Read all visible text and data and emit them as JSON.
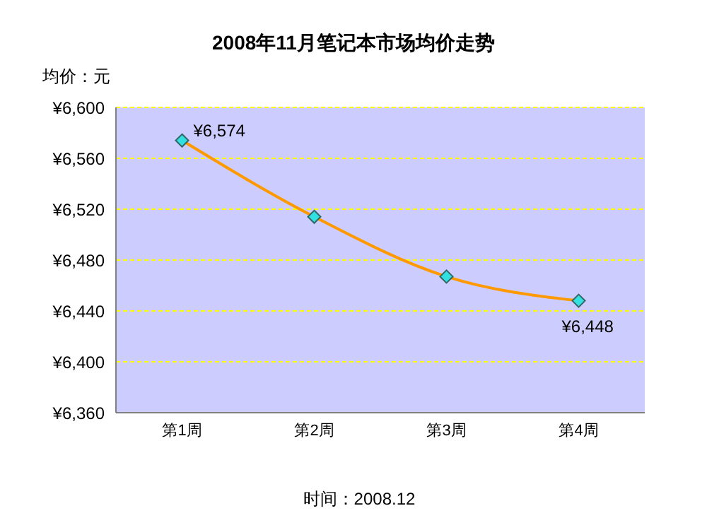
{
  "chart_data": {
    "type": "line",
    "title": "2008年11月笔记本市场均价走势",
    "ylabel": "均价：元",
    "categories": [
      "第1周",
      "第2周",
      "第3周",
      "第4周"
    ],
    "series": [
      {
        "color": "#ff9900",
        "values": [
          6574,
          6514,
          6467,
          6448
        ],
        "value_labels": [
          "¥6,574",
          null,
          null,
          "¥6,448"
        ]
      }
    ],
    "ylim": [
      6360,
      6600
    ],
    "yticks": [
      {
        "value": 6360,
        "label": "¥6,360"
      },
      {
        "value": 6400,
        "label": "¥6,400"
      },
      {
        "value": 6440,
        "label": "¥6,440"
      },
      {
        "value": 6480,
        "label": "¥6,480"
      },
      {
        "value": 6520,
        "label": "¥6,520"
      },
      {
        "value": 6560,
        "label": "¥6,560"
      },
      {
        "value": 6600,
        "label": "¥6,600"
      }
    ],
    "grid": "y",
    "marker": "diamond",
    "line_style": "solid",
    "annotations": [
      "时间：2008.12"
    ]
  }
}
